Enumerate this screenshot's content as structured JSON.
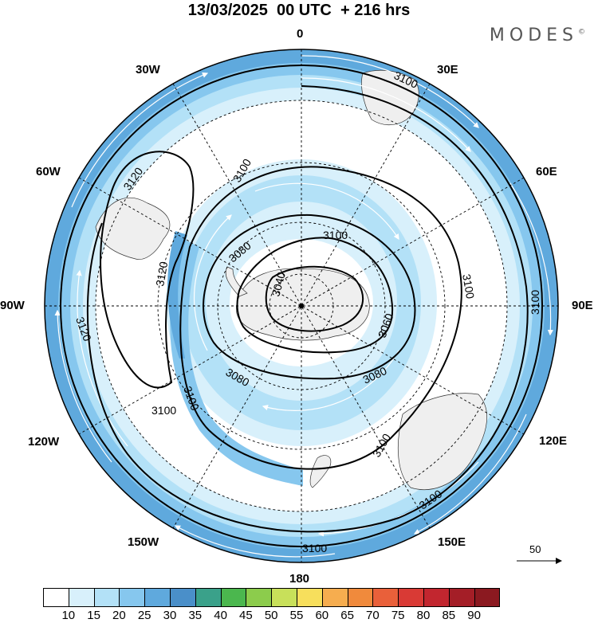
{
  "header": {
    "title": "13/03/2025  00 UTC  + 216 hrs",
    "brand": "MODES",
    "brand_mark": "©"
  },
  "map": {
    "projection": "south-polar-stereographic",
    "longitude_labels": {
      "top": "0",
      "top_right": "30E",
      "right_upper": "60E",
      "right": "90E",
      "right_lower": "120E",
      "bottom_right": "150E",
      "bottom": "180",
      "bottom_left": "150W",
      "left_lower": "120W",
      "left": "90W",
      "left_upper": "60W",
      "top_left": "30W"
    },
    "contour_labels": [
      "3100",
      "3100",
      "3100",
      "3100",
      "3100",
      "3100",
      "3100",
      "3120",
      "3120",
      "3120",
      "3100",
      "3080",
      "3080",
      "3080",
      "3060",
      "3040",
      "3100",
      "3100"
    ],
    "reference_vector": "50",
    "colors": {
      "ocean_outer": "#5a9bd6",
      "land": "#efefef",
      "contour": "#000000"
    }
  },
  "colorbar": {
    "labels": [
      "10",
      "15",
      "20",
      "25",
      "30",
      "35",
      "40",
      "45",
      "50",
      "55",
      "60",
      "65",
      "70",
      "75",
      "80",
      "85",
      "90"
    ],
    "colors": [
      "#ffffff",
      "#d8f0fb",
      "#b3e1f7",
      "#86c7ee",
      "#5fa9dd",
      "#4a8fc9",
      "#3aa18a",
      "#4bb74e",
      "#8ccc4c",
      "#c8e05a",
      "#f7df5c",
      "#f6ad4f",
      "#f08a3c",
      "#e9603a",
      "#d93a35",
      "#c2262f",
      "#a41e27",
      "#8b1920"
    ]
  }
}
